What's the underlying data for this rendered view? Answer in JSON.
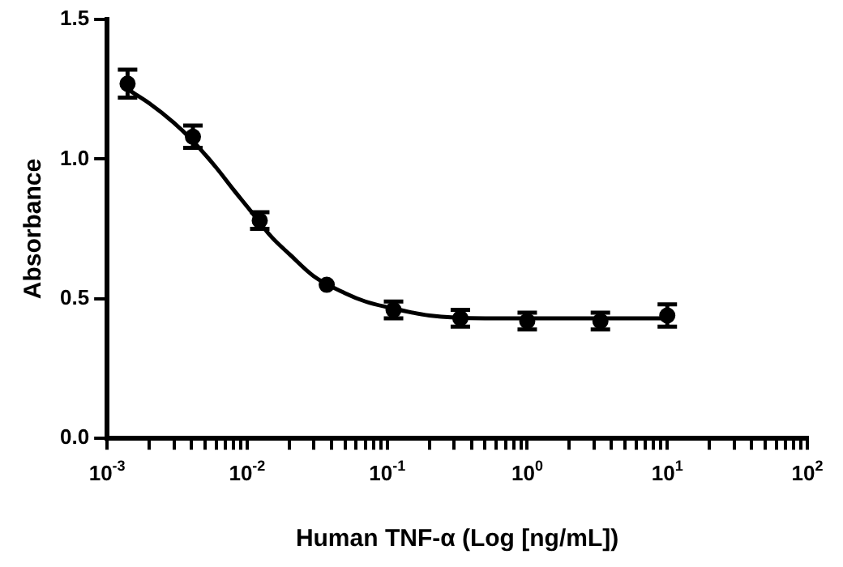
{
  "chart_data": {
    "type": "scatter",
    "xlabel": "Human TNF-α (Log [ng/mL])",
    "ylabel": "Absorbance",
    "log": "x",
    "grid": false,
    "legend": false,
    "marker": "circle",
    "xlim": [
      0.001,
      100
    ],
    "ylim": [
      0,
      1.5
    ],
    "xticks": [
      {
        "value": 0.001,
        "label": "10$^{-3}$"
      },
      {
        "value": 0.002,
        "label": null
      },
      {
        "value": 0.003,
        "label": null
      },
      {
        "value": 0.004,
        "label": null
      },
      {
        "value": 0.005,
        "label": null
      },
      {
        "value": 0.006,
        "label": null
      },
      {
        "value": 0.007,
        "label": null
      },
      {
        "value": 0.008,
        "label": null
      },
      {
        "value": 0.009,
        "label": null
      },
      {
        "value": 0.01,
        "label": "10$^{-2}$"
      },
      {
        "value": 0.02,
        "label": null
      },
      {
        "value": 0.03,
        "label": null
      },
      {
        "value": 0.04,
        "label": null
      },
      {
        "value": 0.05,
        "label": null
      },
      {
        "value": 0.06,
        "label": null
      },
      {
        "value": 0.07,
        "label": null
      },
      {
        "value": 0.08,
        "label": null
      },
      {
        "value": 0.09,
        "label": null
      },
      {
        "value": 0.1,
        "label": "10$^{-1}$"
      },
      {
        "value": 0.2,
        "label": null
      },
      {
        "value": 0.3,
        "label": null
      },
      {
        "value": 0.4,
        "label": null
      },
      {
        "value": 0.5,
        "label": null
      },
      {
        "value": 0.6,
        "label": null
      },
      {
        "value": 0.7,
        "label": null
      },
      {
        "value": 0.8,
        "label": null
      },
      {
        "value": 0.9,
        "label": null
      },
      {
        "value": 1,
        "label": "10$^{0}$"
      },
      {
        "value": 2,
        "label": null
      },
      {
        "value": 3,
        "label": null
      },
      {
        "value": 4,
        "label": null
      },
      {
        "value": 5,
        "label": null
      },
      {
        "value": 6,
        "label": null
      },
      {
        "value": 7,
        "label": null
      },
      {
        "value": 8,
        "label": null
      },
      {
        "value": 9,
        "label": null
      },
      {
        "value": 10,
        "label": "10$^{1}$"
      },
      {
        "value": 20,
        "label": null
      },
      {
        "value": 30,
        "label": null
      },
      {
        "value": 40,
        "label": null
      },
      {
        "value": 50,
        "label": null
      },
      {
        "value": 60,
        "label": null
      },
      {
        "value": 70,
        "label": null
      },
      {
        "value": 80,
        "label": null
      },
      {
        "value": 90,
        "label": null
      },
      {
        "value": 100,
        "label": "10$^{2}$"
      }
    ],
    "yticks": [
      {
        "value": 0,
        "label": "0.0"
      },
      {
        "value": 0.5,
        "label": "0.5"
      },
      {
        "value": 1,
        "label": "1.0"
      },
      {
        "value": 1.5,
        "label": "1.5"
      }
    ],
    "series": [
      {
        "color": "#000000",
        "x": [
          0.0014,
          0.0041,
          0.0123,
          0.037,
          0.111,
          0.333,
          1,
          3.33,
          10
        ],
        "values": [
          1.27,
          1.08,
          0.78,
          0.55,
          0.46,
          0.43,
          0.42,
          0.42,
          0.44
        ],
        "errors": [
          0.05,
          0.04,
          0.03,
          null,
          0.03,
          0.03,
          0.03,
          0.03,
          0.04
        ]
      },
      {
        "type": "line",
        "color": "#000000",
        "marker": "none",
        "x": [
          0.0014,
          0.002,
          0.003,
          0.004,
          0.006,
          0.008,
          0.01,
          0.015,
          0.02,
          0.03,
          0.05,
          0.07,
          0.1,
          0.2,
          0.5,
          1,
          3,
          10
        ],
        "values": [
          1.25,
          1.2,
          1.13,
          1.07,
          0.97,
          0.89,
          0.83,
          0.72,
          0.66,
          0.58,
          0.52,
          0.49,
          0.47,
          0.44,
          0.43,
          0.43,
          0.43,
          0.43
        ]
      }
    ]
  }
}
